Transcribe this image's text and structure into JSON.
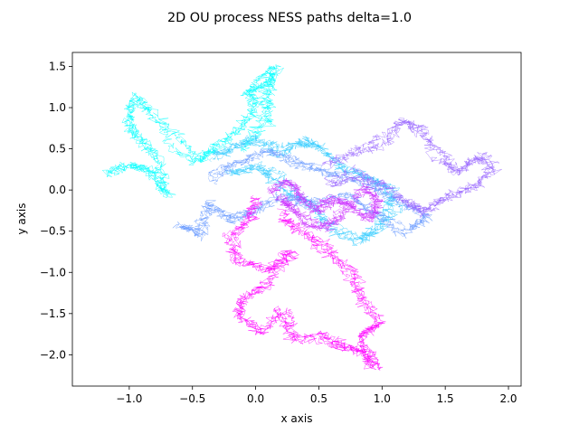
{
  "chart_data": {
    "type": "line",
    "title": "2D OU process NESS paths delta=1.0",
    "xlabel": "x axis",
    "ylabel": "y axis",
    "xlim": [
      -1.45,
      2.1
    ],
    "ylim": [
      -2.38,
      1.67
    ],
    "xticks": [
      -1.0,
      -0.5,
      0.0,
      0.5,
      1.0,
      1.5,
      2.0
    ],
    "xtick_labels": [
      "−1.0",
      "−0.5",
      "0.0",
      "0.5",
      "1.0",
      "1.5",
      "2.0"
    ],
    "yticks": [
      -2.0,
      -1.5,
      -1.0,
      -0.5,
      0.0,
      0.5,
      1.0,
      1.5
    ],
    "ytick_labels": [
      "−2.0",
      "−1.5",
      "−1.0",
      "−0.5",
      "0.0",
      "0.5",
      "1.0",
      "1.5"
    ],
    "grid": false,
    "legend": "none",
    "colormap": "cool",
    "colors": [
      "#00ffff",
      "#33ccff",
      "#6699ff",
      "#9966ff",
      "#cc33ff",
      "#ff00ff"
    ],
    "series": [
      {
        "color": "#00ffff",
        "waypoints": [
          [
            -1.2,
            0.2
          ],
          [
            -1.0,
            0.3
          ],
          [
            -0.85,
            0.25
          ],
          [
            -0.7,
            -0.05
          ],
          [
            -0.75,
            0.35
          ],
          [
            -0.9,
            0.6
          ],
          [
            -1.0,
            0.8
          ],
          [
            -0.95,
            1.15
          ],
          [
            -0.8,
            0.9
          ],
          [
            -0.6,
            0.6
          ],
          [
            -0.45,
            0.35
          ],
          [
            -0.3,
            0.5
          ],
          [
            -0.15,
            0.75
          ],
          [
            0.0,
            1.0
          ],
          [
            -0.1,
            1.2
          ],
          [
            0.05,
            1.35
          ],
          [
            0.15,
            1.45
          ],
          [
            0.1,
            1.1
          ],
          [
            0.05,
            0.8
          ],
          [
            -0.1,
            0.5
          ]
        ]
      },
      {
        "color": "#33ccff",
        "waypoints": [
          [
            -0.3,
            0.4
          ],
          [
            -0.15,
            0.55
          ],
          [
            0.0,
            0.6
          ],
          [
            0.2,
            0.45
          ],
          [
            0.35,
            0.6
          ],
          [
            0.5,
            0.55
          ],
          [
            0.7,
            0.3
          ],
          [
            0.9,
            0.15
          ],
          [
            1.05,
            0.0
          ],
          [
            1.1,
            -0.25
          ],
          [
            0.95,
            -0.45
          ],
          [
            0.8,
            -0.6
          ],
          [
            0.6,
            -0.4
          ],
          [
            0.45,
            -0.2
          ],
          [
            0.3,
            -0.05
          ],
          [
            0.15,
            0.15
          ],
          [
            0.0,
            0.3
          ],
          [
            -0.2,
            0.2
          ]
        ]
      },
      {
        "color": "#6699ff",
        "waypoints": [
          [
            -0.6,
            -0.4
          ],
          [
            -0.45,
            -0.55
          ],
          [
            -0.35,
            -0.2
          ],
          [
            -0.2,
            -0.35
          ],
          [
            0.0,
            -0.25
          ],
          [
            0.2,
            -0.1
          ],
          [
            0.45,
            -0.15
          ],
          [
            0.7,
            -0.05
          ],
          [
            0.95,
            -0.3
          ],
          [
            1.2,
            -0.5
          ],
          [
            1.35,
            -0.3
          ],
          [
            1.1,
            -0.1
          ],
          [
            0.85,
            0.1
          ],
          [
            0.6,
            0.2
          ],
          [
            0.35,
            0.35
          ],
          [
            0.1,
            0.45
          ],
          [
            -0.15,
            0.3
          ],
          [
            -0.35,
            0.1
          ]
        ]
      },
      {
        "color": "#9966ff",
        "waypoints": [
          [
            0.55,
            0.3
          ],
          [
            0.8,
            0.45
          ],
          [
            1.0,
            0.6
          ],
          [
            1.15,
            0.85
          ],
          [
            1.3,
            0.75
          ],
          [
            1.45,
            0.4
          ],
          [
            1.6,
            0.2
          ],
          [
            1.75,
            0.4
          ],
          [
            1.9,
            0.3
          ],
          [
            1.7,
            0.05
          ],
          [
            1.5,
            -0.1
          ],
          [
            1.35,
            -0.3
          ],
          [
            1.2,
            -0.15
          ],
          [
            1.0,
            0.05
          ],
          [
            0.8,
            0.2
          ],
          [
            0.6,
            0.1
          ]
        ]
      },
      {
        "color": "#cc33ff",
        "waypoints": [
          [
            0.1,
            0.0
          ],
          [
            0.25,
            0.1
          ],
          [
            0.35,
            -0.05
          ],
          [
            0.5,
            -0.25
          ],
          [
            0.6,
            -0.1
          ],
          [
            0.75,
            -0.2
          ],
          [
            0.9,
            -0.35
          ],
          [
            0.95,
            -0.1
          ],
          [
            0.85,
            0.05
          ],
          [
            0.7,
            -0.3
          ],
          [
            0.55,
            -0.45
          ],
          [
            0.4,
            -0.4
          ],
          [
            0.3,
            -0.2
          ],
          [
            0.2,
            -0.1
          ]
        ]
      },
      {
        "color": "#ff00ff",
        "waypoints": [
          [
            0.0,
            -0.1
          ],
          [
            -0.05,
            -0.4
          ],
          [
            -0.2,
            -0.55
          ],
          [
            -0.15,
            -0.85
          ],
          [
            0.1,
            -0.95
          ],
          [
            0.3,
            -0.75
          ],
          [
            0.1,
            -1.1
          ],
          [
            -0.1,
            -1.3
          ],
          [
            -0.15,
            -1.55
          ],
          [
            0.05,
            -1.7
          ],
          [
            0.2,
            -1.45
          ],
          [
            0.3,
            -1.8
          ],
          [
            0.5,
            -1.75
          ],
          [
            0.7,
            -1.9
          ],
          [
            0.85,
            -1.95
          ],
          [
            0.9,
            -2.15
          ],
          [
            0.8,
            -1.8
          ],
          [
            0.95,
            -1.6
          ],
          [
            0.85,
            -1.3
          ],
          [
            0.75,
            -0.95
          ],
          [
            0.55,
            -0.7
          ],
          [
            0.35,
            -0.5
          ],
          [
            0.2,
            -0.3
          ]
        ]
      }
    ]
  }
}
